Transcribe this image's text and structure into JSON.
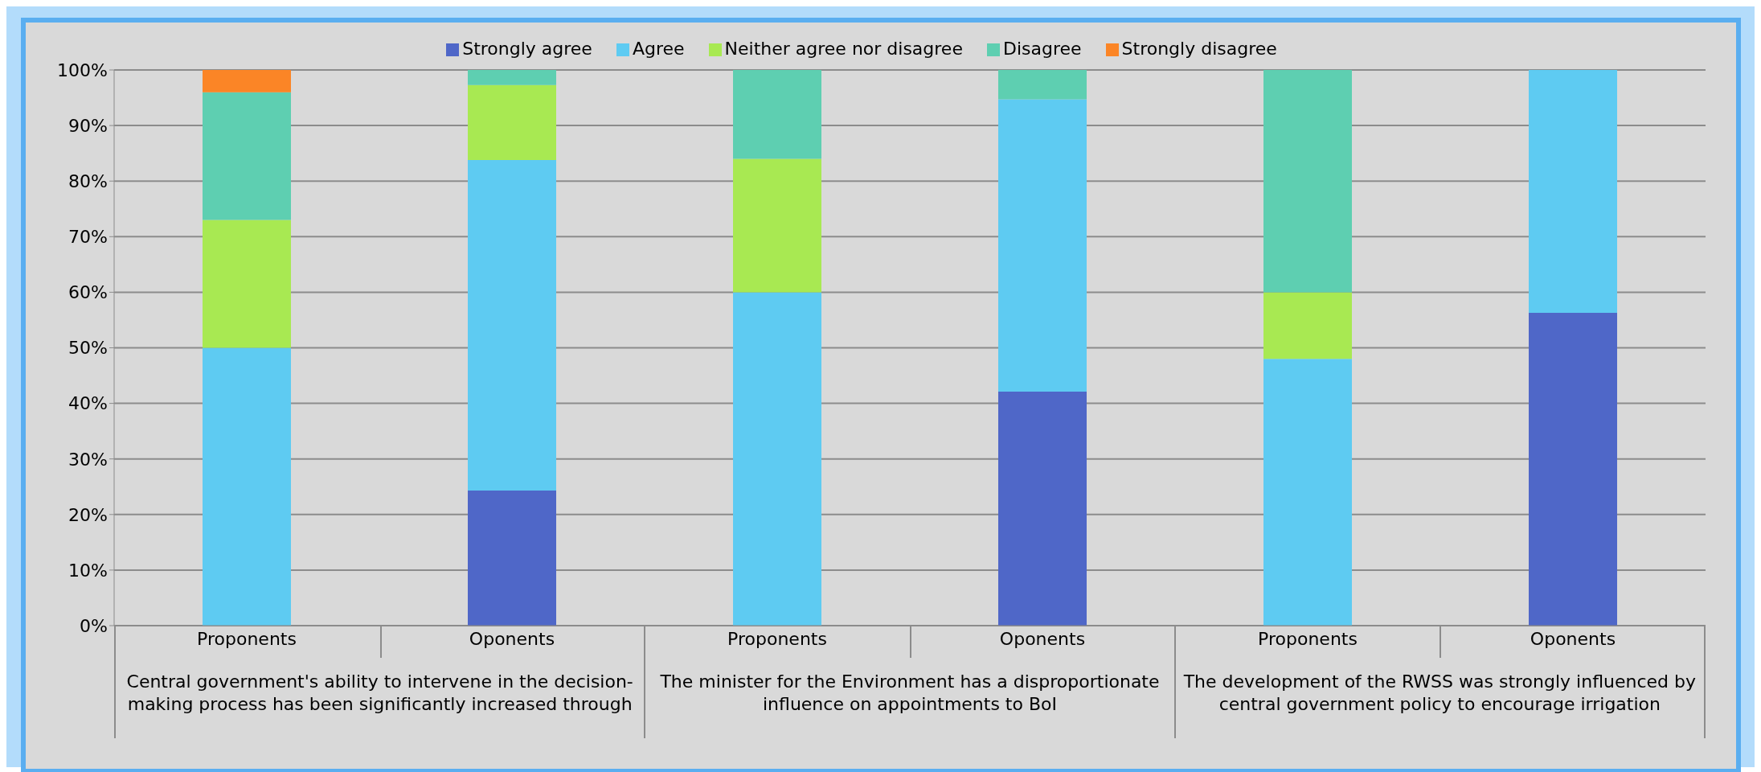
{
  "chart_data": {
    "type": "bar",
    "stacked": true,
    "categories": [
      "Proponents",
      "Oponents",
      "Proponents",
      "Oponents",
      "Proponents",
      "Oponents"
    ],
    "series": [
      {
        "name": "Strongly agree",
        "color": "#4f67c8",
        "values": [
          0,
          24.3,
          0,
          42.1,
          0,
          56.3
        ]
      },
      {
        "name": "Agree",
        "color": "#5ecbf2",
        "values": [
          50,
          59.5,
          60,
          52.6,
          48,
          43.7
        ]
      },
      {
        "name": "Neither agree nor disagree",
        "color": "#a8e952",
        "values": [
          23,
          13.5,
          24,
          0,
          12,
          0
        ]
      },
      {
        "name": "Disagree",
        "color": "#5ecfb1",
        "values": [
          23,
          2.7,
          16,
          5.3,
          40,
          0
        ]
      },
      {
        "name": "Strongly disagree",
        "color": "#fb8526",
        "values": [
          4,
          0,
          0,
          0,
          0,
          0
        ]
      }
    ],
    "ylim": [
      0,
      100
    ],
    "yticks": [
      {
        "value": 0,
        "label": "0%"
      },
      {
        "value": 10,
        "label": "10%"
      },
      {
        "value": 20,
        "label": "20%"
      },
      {
        "value": 30,
        "label": "30%"
      },
      {
        "value": 40,
        "label": "40%"
      },
      {
        "value": 50,
        "label": "50%"
      },
      {
        "value": 60,
        "label": "60%"
      },
      {
        "value": 70,
        "label": "70%"
      },
      {
        "value": 80,
        "label": "80%"
      },
      {
        "value": 90,
        "label": "90%"
      },
      {
        "value": 100,
        "label": "100%"
      }
    ],
    "grid": "y",
    "legend": "top",
    "annotations": [
      "Central government's ability to intervene in the decision-making process has been significantly increased through",
      "The minister for the Environment has a disproportionate influence on appointments to BoI",
      "The development of the RWSS was strongly influenced by central government policy to encourage irrigation"
    ]
  }
}
